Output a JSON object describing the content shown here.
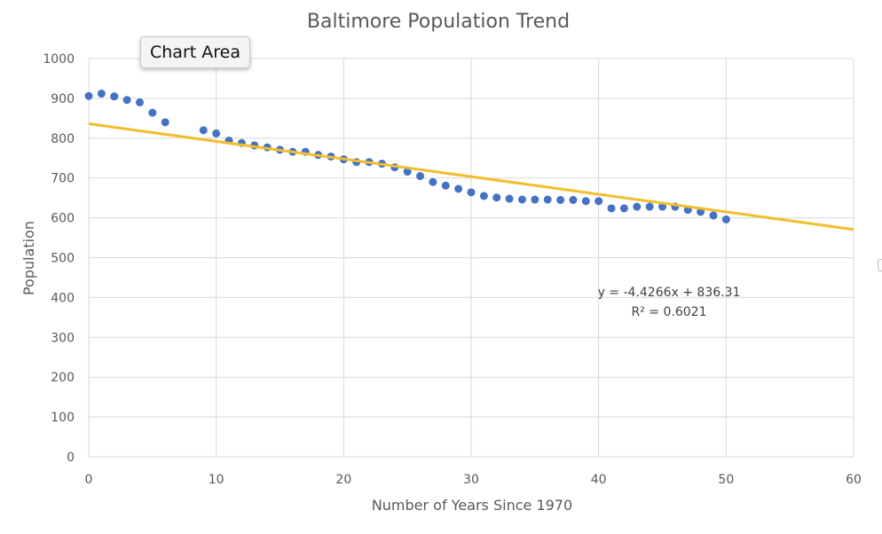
{
  "chart_data": {
    "type": "scatter",
    "title": "Baltimore Population Trend",
    "xlabel": "Number of Years Since 1970",
    "ylabel": "Population",
    "xlim": [
      0,
      60
    ],
    "ylim": [
      0,
      1000
    ],
    "x_ticks": [
      "0",
      "10",
      "20",
      "30",
      "40",
      "50",
      "60"
    ],
    "y_ticks": [
      "0",
      "100",
      "200",
      "300",
      "400",
      "500",
      "600",
      "700",
      "800",
      "900",
      "1000"
    ],
    "grid": true,
    "legend": "none",
    "series": [
      {
        "color": "#4472C4",
        "points": [
          [
            0,
            906
          ],
          [
            1,
            912
          ],
          [
            2,
            905
          ],
          [
            3,
            896
          ],
          [
            4,
            890
          ],
          [
            5,
            864
          ],
          [
            6,
            840
          ],
          [
            9,
            820
          ],
          [
            10,
            812
          ],
          [
            11,
            794
          ],
          [
            12,
            788
          ],
          [
            13,
            782
          ],
          [
            14,
            777
          ],
          [
            15,
            771
          ],
          [
            16,
            766
          ],
          [
            17,
            766
          ],
          [
            18,
            758
          ],
          [
            19,
            754
          ],
          [
            20,
            747
          ],
          [
            21,
            740
          ],
          [
            22,
            740
          ],
          [
            23,
            736
          ],
          [
            24,
            727
          ],
          [
            25,
            716
          ],
          [
            26,
            705
          ],
          [
            27,
            690
          ],
          [
            28,
            681
          ],
          [
            29,
            673
          ],
          [
            30,
            664
          ],
          [
            31,
            655
          ],
          [
            32,
            651
          ],
          [
            33,
            648
          ],
          [
            34,
            646
          ],
          [
            35,
            646
          ],
          [
            36,
            646
          ],
          [
            37,
            645
          ],
          [
            38,
            645
          ],
          [
            39,
            642
          ],
          [
            40,
            642
          ],
          [
            41,
            624
          ],
          [
            42,
            624
          ],
          [
            43,
            628
          ],
          [
            44,
            628
          ],
          [
            45,
            628
          ],
          [
            46,
            628
          ],
          [
            47,
            620
          ],
          [
            48,
            615
          ],
          [
            49,
            606
          ],
          [
            50,
            596
          ]
        ]
      }
    ],
    "trendline": {
      "slope": -4.4266,
      "intercept": 836.31,
      "color": "#F2BE2C",
      "equation": "y = -4.4266x + 836.31",
      "r_squared": "R² = 0.6021"
    }
  },
  "tooltip": {
    "label": "Chart Area"
  }
}
